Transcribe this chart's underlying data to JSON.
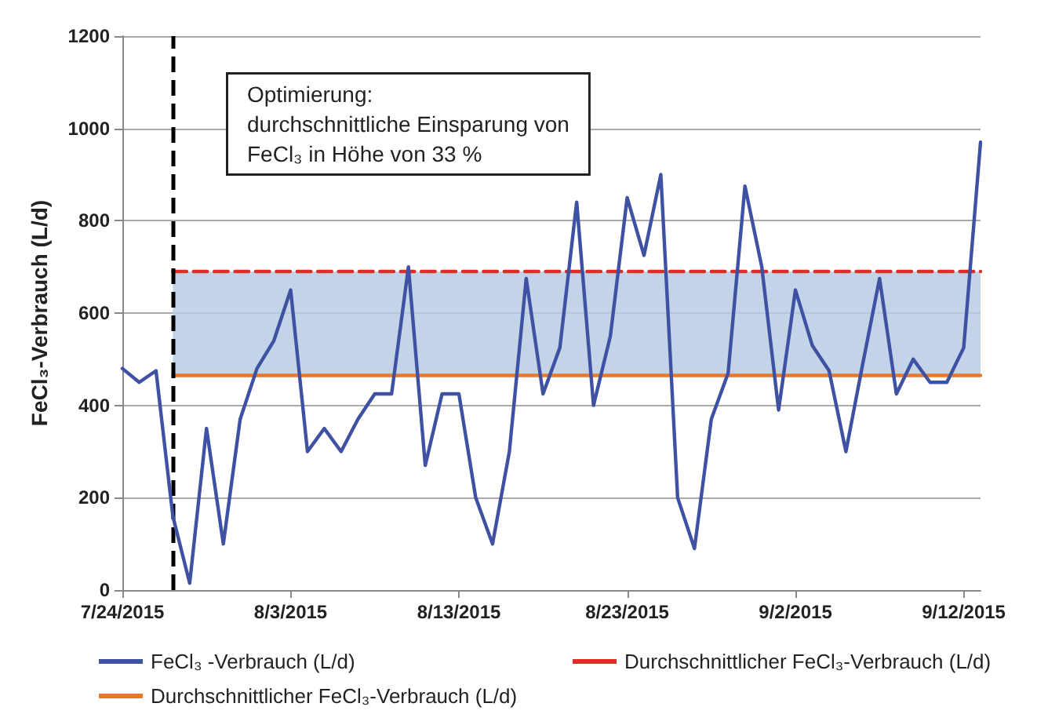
{
  "chart_data": {
    "type": "line",
    "ylabel": "FeCl₃-Verbrauch (L/d)",
    "x": [
      "2015-07-24",
      "2015-07-25",
      "2015-07-26",
      "2015-07-27",
      "2015-07-28",
      "2015-07-29",
      "2015-07-30",
      "2015-07-31",
      "2015-08-01",
      "2015-08-02",
      "2015-08-03",
      "2015-08-04",
      "2015-08-05",
      "2015-08-06",
      "2015-08-07",
      "2015-08-08",
      "2015-08-09",
      "2015-08-10",
      "2015-08-11",
      "2015-08-12",
      "2015-08-13",
      "2015-08-14",
      "2015-08-15",
      "2015-08-16",
      "2015-08-17",
      "2015-08-18",
      "2015-08-19",
      "2015-08-20",
      "2015-08-21",
      "2015-08-22",
      "2015-08-23",
      "2015-08-24",
      "2015-08-25",
      "2015-08-26",
      "2015-08-27",
      "2015-08-28",
      "2015-08-29",
      "2015-08-30",
      "2015-08-31",
      "2015-09-01",
      "2015-09-02",
      "2015-09-03",
      "2015-09-04",
      "2015-09-05",
      "2015-09-06",
      "2015-09-07",
      "2015-09-08",
      "2015-09-09",
      "2015-09-10",
      "2015-09-11",
      "2015-09-12",
      "2015-09-13"
    ],
    "series": [
      {
        "name": "FeCl₃ -Verbrauch (L/d)",
        "color": "#3f51a3",
        "values": [
          480,
          450,
          475,
          160,
          15,
          350,
          100,
          370,
          480,
          540,
          650,
          300,
          350,
          300,
          370,
          425,
          425,
          700,
          270,
          425,
          425,
          200,
          100,
          300,
          675,
          425,
          525,
          840,
          400,
          550,
          850,
          725,
          900,
          200,
          90,
          370,
          470,
          875,
          700,
          390,
          650,
          530,
          475,
          300,
          490,
          675,
          425,
          500,
          450,
          450,
          525,
          970
        ]
      },
      {
        "name": "Durchschnittlicher FeCl₃-Verbrauch (L/d)",
        "color": "#e8782a",
        "x": [
          "2015-07-27",
          "2015-09-13"
        ],
        "values": [
          465,
          465
        ],
        "line_style": "solid"
      },
      {
        "name": "Durchschnittlicher FeCl₃-Verbrauch (L/d)",
        "color": "#d9302a",
        "x": [
          "2015-07-27",
          "2015-09-13"
        ],
        "values": [
          690,
          690
        ],
        "line_style": "dashed"
      }
    ],
    "xlim": [
      "2015-07-24",
      "2015-09-13"
    ],
    "xticks": [
      {
        "value": "2015-07-24",
        "label": "7/24/2015"
      },
      {
        "value": "2015-08-03",
        "label": "8/3/2015"
      },
      {
        "value": "2015-08-13",
        "label": "8/13/2015"
      },
      {
        "value": "2015-08-23",
        "label": "8/23/2015"
      },
      {
        "value": "2015-09-02",
        "label": "9/2/2015"
      },
      {
        "value": "2015-09-12",
        "label": "9/12/2015"
      }
    ],
    "ylim": [
      0,
      1200
    ],
    "yticks": [
      0,
      200,
      400,
      600,
      800,
      1000,
      1200
    ],
    "grid": "y",
    "legend": "bottom",
    "marker": "none",
    "bands": [
      {
        "axis": "y",
        "from": 465,
        "to": 690,
        "color": "#b8cce4"
      }
    ],
    "ref_lines": [
      {
        "axis": "x",
        "value": "2015-07-27",
        "color": "#000000",
        "line_style": "dashed"
      }
    ],
    "annotations": [
      "Optimierung:\ndurchschnittliche Einsparung von\nFeCl₃ in Höhe von 33 %"
    ]
  }
}
